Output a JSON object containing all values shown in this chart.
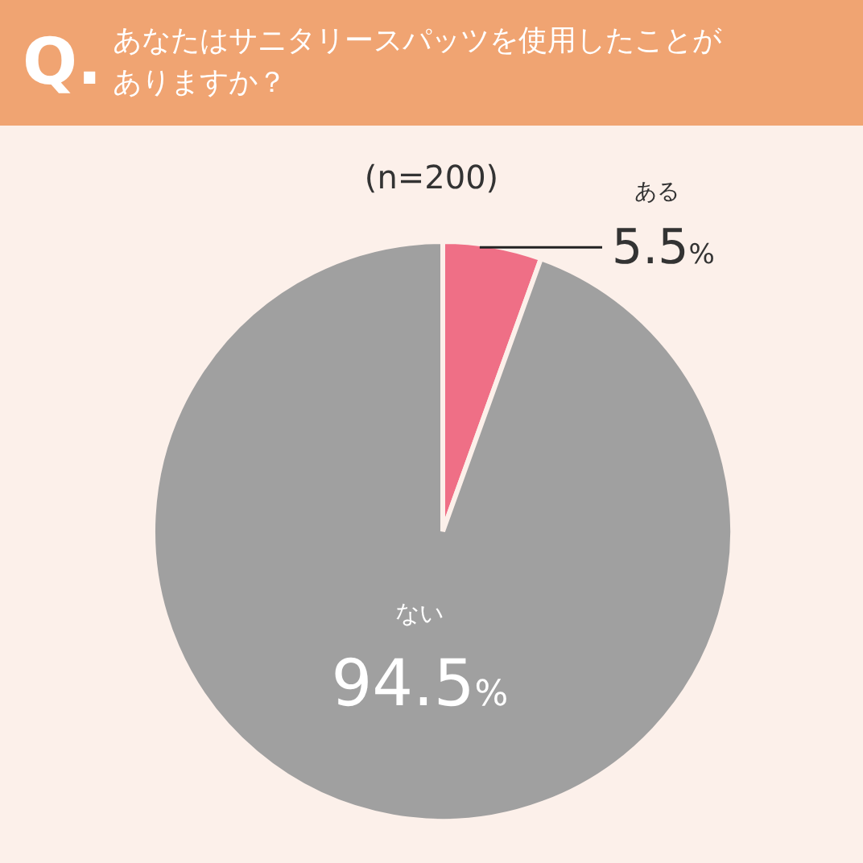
{
  "chart_data": {
    "type": "pie",
    "title": "あなたはサニタリースパッツを使用したことがありますか？",
    "subtitle": "(n=200)",
    "annotations": [
      "Q."
    ],
    "categories": [
      "ある",
      "ない"
    ],
    "values": [
      5.5,
      94.5
    ],
    "colors": [
      "#ef6f86",
      "#a0a0a0"
    ],
    "value_labels": [
      "5.5%",
      "94.5%"
    ]
  }
}
